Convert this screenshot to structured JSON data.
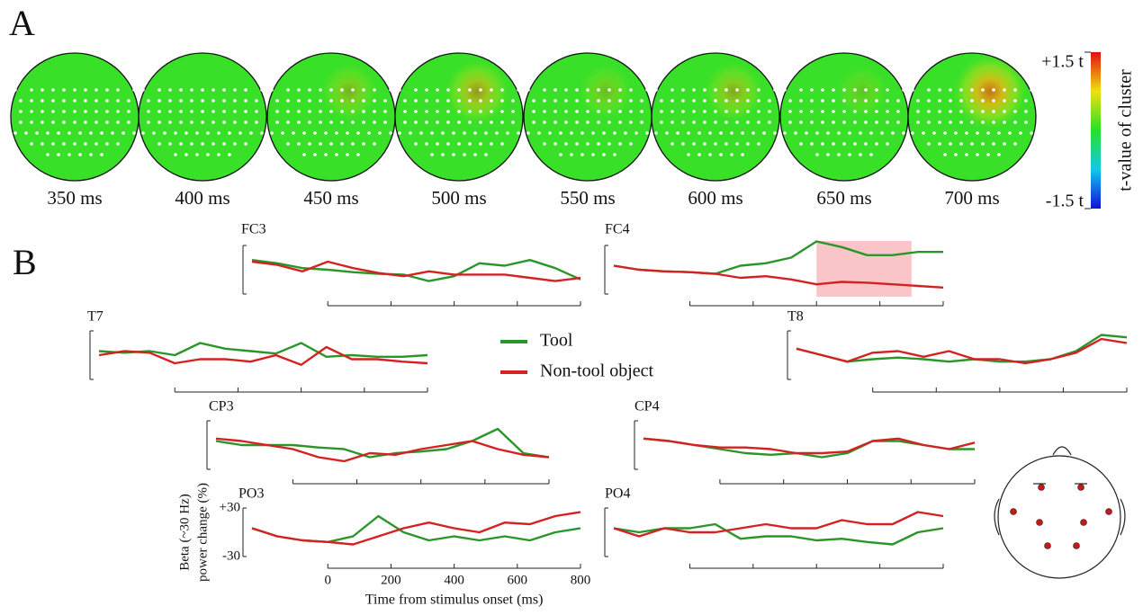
{
  "panel_labels": [
    "A",
    "B"
  ],
  "topomaps": {
    "times": [
      "350 ms",
      "400 ms",
      "450 ms",
      "500 ms",
      "550 ms",
      "600 ms",
      "650 ms",
      "700 ms"
    ],
    "peaks": [
      0,
      0,
      0.5,
      0.8,
      0.4,
      0.6,
      0.3,
      1.2
    ],
    "colorbar": {
      "label": "t-value of cluster",
      "lim": [
        -1.5,
        1.5
      ],
      "ticks": [
        {
          "value": 1.5,
          "label": "+1.5 t"
        },
        {
          "value": -1.5,
          "label": "-1.5 t"
        }
      ]
    }
  },
  "legend": [
    {
      "name": "Tool",
      "color": "#2a962a"
    },
    {
      "name": "Non-tool object",
      "color": "#d42222"
    }
  ],
  "chart_data": [
    {
      "type": "line",
      "title": "FC3",
      "x": [
        -240,
        -160,
        -80,
        0,
        80,
        160,
        240,
        320,
        400,
        480,
        560,
        640,
        720,
        800
      ],
      "xlim": [
        -240,
        800
      ],
      "ylim": [
        -40,
        40
      ],
      "xticks": [
        0,
        200,
        400,
        600,
        800
      ],
      "yticks": [
        -30,
        30
      ],
      "tick_labels": false,
      "series": [
        {
          "values": [
            12,
            8,
            2,
            0,
            -3,
            -5,
            -6,
            -14,
            -8,
            8,
            5,
            12,
            2,
            -12
          ]
        },
        {
          "values": [
            10,
            6,
            -2,
            10,
            2,
            -4,
            -8,
            -2,
            -6,
            -6,
            -6,
            -10,
            -14,
            -10
          ]
        }
      ]
    },
    {
      "type": "line",
      "title": "FC4",
      "x": [
        -240,
        -160,
        -80,
        0,
        80,
        160,
        240,
        320,
        400,
        480,
        560,
        640,
        720,
        800
      ],
      "xlim": [
        -240,
        800
      ],
      "ylim": [
        -40,
        40
      ],
      "xticks": [
        0,
        200,
        400,
        600,
        800
      ],
      "yticks": [
        -30,
        30
      ],
      "tick_labels": false,
      "highlight": [
        400,
        700
      ],
      "highlight_color": "#f9c5c8",
      "series": [
        {
          "values": [
            5,
            0,
            -2,
            -3,
            -5,
            5,
            8,
            15,
            35,
            28,
            18,
            18,
            22,
            22
          ]
        },
        {
          "values": [
            5,
            0,
            -2,
            -3,
            -5,
            -10,
            -8,
            -12,
            -18,
            -15,
            -16,
            -18,
            -20,
            -22
          ]
        }
      ]
    },
    {
      "type": "line",
      "title": "T7",
      "x": [
        -240,
        -160,
        -80,
        0,
        80,
        160,
        240,
        320,
        400,
        480,
        560,
        640,
        720,
        800
      ],
      "xlim": [
        -240,
        800
      ],
      "ylim": [
        -40,
        40
      ],
      "xticks": [
        0,
        200,
        400,
        600,
        800
      ],
      "yticks": [
        -30,
        30
      ],
      "tick_labels": false,
      "series": [
        {
          "values": [
            5,
            3,
            5,
            0,
            15,
            8,
            5,
            2,
            15,
            -2,
            0,
            -2,
            -2,
            0
          ]
        },
        {
          "values": [
            0,
            5,
            3,
            -10,
            -5,
            -5,
            -8,
            0,
            -12,
            10,
            -5,
            -5,
            -8,
            -10
          ]
        }
      ]
    },
    {
      "type": "line",
      "title": "T8",
      "x": [
        -240,
        -160,
        -80,
        0,
        80,
        160,
        240,
        320,
        400,
        480,
        560,
        640,
        720,
        800
      ],
      "xlim": [
        -240,
        800
      ],
      "ylim": [
        -40,
        40
      ],
      "xticks": [
        0,
        200,
        400,
        600,
        800
      ],
      "yticks": [
        -30,
        30
      ],
      "tick_labels": false,
      "series": [
        {
          "values": [
            8,
            0,
            -8,
            -5,
            -3,
            -5,
            -8,
            -5,
            -8,
            -8,
            -5,
            5,
            25,
            22
          ]
        },
        {
          "values": [
            8,
            0,
            -8,
            3,
            5,
            -2,
            5,
            -5,
            -5,
            -10,
            -5,
            3,
            20,
            15
          ]
        }
      ]
    },
    {
      "type": "line",
      "title": "CP3",
      "x": [
        -240,
        -160,
        -80,
        0,
        80,
        160,
        240,
        320,
        400,
        480,
        560,
        640,
        720,
        800
      ],
      "xlim": [
        -240,
        800
      ],
      "ylim": [
        -40,
        40
      ],
      "xticks": [
        0,
        200,
        400,
        600,
        800
      ],
      "yticks": [
        -30,
        30
      ],
      "tick_labels": false,
      "series": [
        {
          "values": [
            5,
            0,
            0,
            0,
            -3,
            -5,
            -15,
            -10,
            -8,
            -5,
            5,
            20,
            -10,
            -15
          ]
        },
        {
          "values": [
            8,
            5,
            0,
            -5,
            -15,
            -20,
            -10,
            -12,
            -5,
            0,
            5,
            -5,
            -12,
            -15
          ]
        }
      ]
    },
    {
      "type": "line",
      "title": "CP4",
      "x": [
        -240,
        -160,
        -80,
        0,
        80,
        160,
        240,
        320,
        400,
        480,
        560,
        640,
        720,
        800
      ],
      "xlim": [
        -240,
        800
      ],
      "ylim": [
        -40,
        40
      ],
      "xticks": [
        0,
        200,
        400,
        600,
        800
      ],
      "yticks": [
        -30,
        30
      ],
      "tick_labels": false,
      "series": [
        {
          "values": [
            8,
            5,
            0,
            -5,
            -10,
            -12,
            -10,
            -15,
            -10,
            5,
            5,
            0,
            -5,
            -5
          ]
        },
        {
          "values": [
            8,
            5,
            0,
            -3,
            -3,
            -5,
            -10,
            -10,
            -8,
            5,
            8,
            0,
            -5,
            3
          ]
        }
      ]
    },
    {
      "type": "line",
      "title": "PO3",
      "x": [
        -240,
        -160,
        -80,
        0,
        80,
        160,
        240,
        320,
        400,
        480,
        560,
        640,
        720,
        800
      ],
      "xlim": [
        -240,
        800
      ],
      "ylim": [
        -40,
        40
      ],
      "xticks": [
        0,
        200,
        400,
        600,
        800
      ],
      "yticks": [
        {
          "value": 30,
          "label": "+30"
        },
        -30
      ],
      "tick_labels": true,
      "xlabel": "Time from stimulus onset (ms)",
      "ylabel": [
        "Beta (~30 Hz)",
        "power change (%)"
      ],
      "series": [
        {
          "values": [
            5,
            -5,
            -10,
            -12,
            -5,
            20,
            0,
            -10,
            -5,
            -10,
            -5,
            -10,
            0,
            5
          ]
        },
        {
          "values": [
            5,
            -5,
            -10,
            -12,
            -15,
            -5,
            5,
            12,
            5,
            0,
            12,
            10,
            20,
            25
          ]
        }
      ]
    },
    {
      "type": "line",
      "title": "PO4",
      "x": [
        -240,
        -160,
        -80,
        0,
        80,
        160,
        240,
        320,
        400,
        480,
        560,
        640,
        720,
        800
      ],
      "xlim": [
        -240,
        800
      ],
      "ylim": [
        -40,
        40
      ],
      "xticks": [
        0,
        200,
        400,
        600,
        800
      ],
      "yticks": [
        -30,
        30
      ],
      "tick_labels": false,
      "series": [
        {
          "values": [
            5,
            0,
            5,
            5,
            10,
            -8,
            -5,
            -5,
            -10,
            -8,
            -12,
            -15,
            0,
            5
          ]
        },
        {
          "values": [
            5,
            -5,
            5,
            0,
            0,
            5,
            10,
            5,
            5,
            15,
            10,
            10,
            25,
            20
          ]
        }
      ]
    }
  ]
}
